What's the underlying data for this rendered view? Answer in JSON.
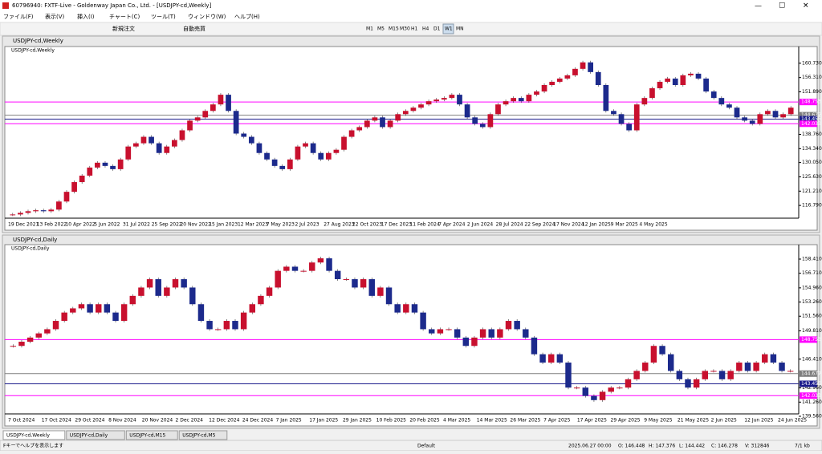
{
  "title_bar": "60796940: FXTF-Live - Goldenway Japan Co., Ltd. - [USDJPY-cd,Weekly]",
  "menu": [
    "ファイル(F)",
    "表示(V)",
    "挿入(I)",
    "チャート(C)",
    "ツール(T)",
    "ウィンドウ(W)",
    "ヘルプ(H)"
  ],
  "toolbar": {
    "new_order": "新規注文",
    "auto_trade": "自動売買",
    "periods": [
      "M1",
      "M5",
      "M15",
      "M30",
      "H1",
      "H4",
      "D1",
      "W1",
      "MN"
    ]
  },
  "charts": [
    {
      "window_title": "USDJPY-cd,Weekly",
      "label": "USDJPY-cd,Weekly",
      "up_color": "#c8102e",
      "down_color": "#1c2a8c",
      "ylim": [
        113.35,
        164.41
      ],
      "yticks": [
        {
          "value": 160.73,
          "label": "160.730"
        },
        {
          "value": 156.31,
          "label": "156.310"
        },
        {
          "value": 151.89,
          "label": "151.890"
        },
        {
          "value": 138.76,
          "label": "138.760"
        },
        {
          "value": 134.34,
          "label": "134.340"
        },
        {
          "value": 130.05,
          "label": "130.050"
        },
        {
          "value": 125.63,
          "label": "125.630"
        },
        {
          "value": 121.21,
          "label": "121.210"
        },
        {
          "value": 116.79,
          "label": "116.790"
        }
      ],
      "levels": [
        {
          "value": 148.753,
          "label": "148.753",
          "color": "#ff00ff"
        },
        {
          "value": 144.677,
          "label": "144.677",
          "color": "#7f7f7f"
        },
        {
          "value": 143.455,
          "label": "143.455",
          "color": "#1c1c8c"
        },
        {
          "value": 142.033,
          "label": "142.033",
          "color": "#ff00ff"
        }
      ],
      "closes": [
        114,
        114.5,
        115,
        115.3,
        115,
        115.5,
        118,
        121,
        124,
        126,
        128.5,
        130,
        129,
        128,
        131,
        135,
        136,
        138,
        136,
        133,
        135,
        137,
        140,
        143,
        144,
        146,
        148,
        151,
        146,
        139,
        138,
        136,
        133,
        131,
        129,
        128,
        131,
        135,
        136,
        133,
        131,
        133,
        134,
        138,
        140,
        141,
        143,
        144,
        141,
        143,
        145,
        146,
        147,
        148,
        149,
        149.5,
        150,
        151,
        148,
        144,
        142,
        141,
        145,
        148,
        149,
        150,
        149,
        151,
        152,
        154,
        155,
        156,
        157,
        159,
        161,
        158,
        154,
        146,
        145,
        142,
        140,
        148,
        150,
        153,
        155,
        156,
        154,
        157,
        157.5,
        156,
        152,
        150,
        148,
        147,
        144,
        143,
        142,
        145,
        146,
        144,
        145,
        147
      ],
      "xlabels": [
        "19 Dec 2021",
        "13 Feb 2022",
        "10 Apr 2022",
        "5 Jun 2022",
        "31 Jul 2022",
        "25 Sep 2022",
        "20 Nov 2022",
        "15 Jan 2023",
        "12 Mar 2023",
        "7 May 2023",
        "2 Jul 2023",
        "27 Aug 2023",
        "22 Oct 2023",
        "17 Dec 2023",
        "11 Feb 2024",
        "7 Apr 2024",
        "2 Jun 2024",
        "28 Jul 2024",
        "22 Sep 2024",
        "17 Nov 2024",
        "12 Jan 2025",
        "9 Mar 2025",
        "4 May 2025"
      ]
    },
    {
      "window_title": "USDJPY-cd,Daily",
      "label": "USDJPY-cd,Daily",
      "up_color": "#c8102e",
      "down_color": "#1c2a8c",
      "ylim": [
        139.27,
        159.66
      ],
      "yticks": [
        {
          "value": 158.41,
          "label": "158.410"
        },
        {
          "value": 156.71,
          "label": "156.710"
        },
        {
          "value": 154.96,
          "label": "154.960"
        },
        {
          "value": 153.26,
          "label": "153.260"
        },
        {
          "value": 151.56,
          "label": "151.560"
        },
        {
          "value": 149.81,
          "label": "149.810"
        },
        {
          "value": 146.41,
          "label": "146.410"
        },
        {
          "value": 142.96,
          "label": "142.960"
        },
        {
          "value": 141.26,
          "label": "141.260"
        },
        {
          "value": 139.56,
          "label": "139.560"
        }
      ],
      "levels": [
        {
          "value": 148.753,
          "label": "148.753",
          "color": "#ff00ff"
        },
        {
          "value": 144.677,
          "label": "144.677",
          "color": "#7f7f7f"
        },
        {
          "value": 143.455,
          "label": "143.455",
          "color": "#1c1c8c"
        },
        {
          "value": 142.033,
          "label": "142.033",
          "color": "#ff00ff"
        }
      ],
      "closes": [
        148,
        148.5,
        149,
        149.5,
        150,
        151,
        152,
        152.5,
        153,
        152,
        153,
        152,
        151,
        153,
        154,
        155,
        156,
        154,
        155,
        156,
        155,
        153,
        151,
        150,
        150,
        151,
        150,
        152,
        153,
        154,
        155,
        157,
        157.5,
        157,
        157,
        158,
        158.5,
        157,
        156,
        156,
        155,
        156,
        154,
        155,
        153,
        152,
        153,
        152,
        150,
        149.5,
        150,
        150,
        149,
        148,
        149,
        150,
        149,
        150,
        151,
        150,
        149,
        147,
        146,
        147,
        146,
        143,
        143,
        142,
        141.5,
        142.5,
        143,
        143,
        144,
        145,
        146,
        148,
        147,
        145,
        144,
        143,
        144,
        145,
        145,
        144,
        145,
        146,
        145,
        146,
        147,
        146,
        145,
        145
      ],
      "xlabels": [
        "7 Oct 2024",
        "17 Oct 2024",
        "29 Oct 2024",
        "8 Nov 2024",
        "20 Nov 2024",
        "2 Dec 2024",
        "12 Dec 2024",
        "24 Dec 2024",
        "7 Jan 2025",
        "17 Jan 2025",
        "29 Jan 2025",
        "10 Feb 2025",
        "20 Feb 2025",
        "4 Mar 2025",
        "14 Mar 2025",
        "26 Mar 2025",
        "7 Apr 2025",
        "17 Apr 2025",
        "29 Apr 2025",
        "9 May 2025",
        "21 May 2025",
        "2 Jun 2025",
        "12 Jun 2025",
        "24 Jun 2025"
      ]
    }
  ],
  "tabs": [
    "USDJPY-cd,Weekly",
    "USDJPY-cd,Daily",
    "USDJPY-cd,M15",
    "USDJPY-cd,M5"
  ],
  "status": [
    "Fキーでヘルプを表示します",
    "Default",
    "2025.06.27 00:00",
    "O: 146.448",
    "H: 147.376",
    "L: 144.442",
    "C: 146.278",
    "V: 312846",
    "7/1 kb"
  ]
}
